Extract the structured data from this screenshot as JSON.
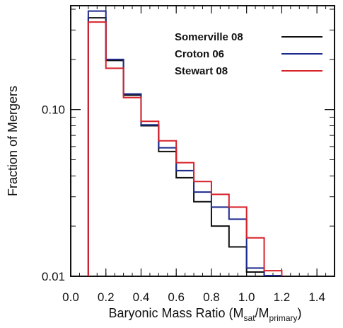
{
  "chart_data": {
    "type": "histogram",
    "xlabel": {
      "main": "Baryonic Mass Ratio (M",
      "sub1": "sat",
      "mid": "/M",
      "sub2": "primary",
      "end": ")"
    },
    "ylabel": "Fraction of Mergers",
    "xlim": [
      0.0,
      1.5
    ],
    "ylim": [
      0.01,
      0.42
    ],
    "y_log": true,
    "x_ticks": [
      "0.0",
      "0.2",
      "0.4",
      "0.6",
      "0.8",
      "1.0",
      "1.2",
      "1.4"
    ],
    "y_ticks": [
      {
        "value": 0.1,
        "label": "0.10"
      },
      {
        "value": 0.01,
        "label": "0.01"
      }
    ],
    "bin_edges": [
      0.1,
      0.2,
      0.3,
      0.4,
      0.5,
      0.6,
      0.7,
      0.8,
      0.9,
      1.0,
      1.1,
      1.2
    ],
    "series": [
      {
        "name": "Somerville 08",
        "color": "#111111",
        "values": [
          0.355,
          0.197,
          0.122,
          0.08,
          0.056,
          0.039,
          0.028,
          0.02,
          0.015,
          0.0106,
          0.0101
        ]
      },
      {
        "name": "Croton 06",
        "color": "#1c2a8c",
        "values": [
          0.39,
          0.2,
          0.124,
          0.081,
          0.059,
          0.043,
          0.032,
          0.026,
          0.022,
          0.0112,
          0.0101
        ]
      },
      {
        "name": "Stewart 08",
        "color": "#d8222a",
        "values": [
          0.335,
          0.177,
          0.118,
          0.085,
          0.065,
          0.048,
          0.037,
          0.031,
          0.026,
          0.017,
          0.0108
        ]
      }
    ],
    "legend_position": "top-right"
  }
}
